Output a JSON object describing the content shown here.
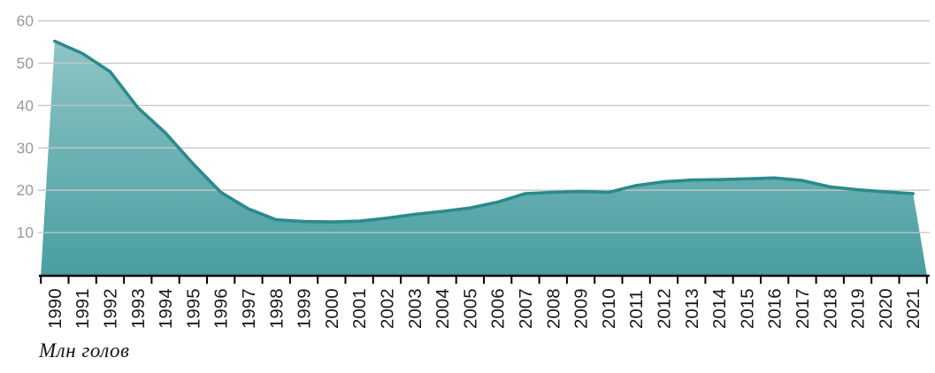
{
  "chart_data": {
    "type": "area",
    "title": "",
    "xlabel": "",
    "ylabel": "",
    "unit_caption": "Млн голов",
    "legend": "none",
    "grid": "horizontal",
    "ylim": [
      0,
      60
    ],
    "yticks": [
      "10",
      "20",
      "30",
      "40",
      "50",
      "60"
    ],
    "categories": [
      "1990",
      "1991",
      "1992",
      "1993",
      "1994",
      "1995",
      "1996",
      "1997",
      "1998",
      "1999",
      "2000",
      "2001",
      "2002",
      "2003",
      "2004",
      "2005",
      "2006",
      "2007",
      "2008",
      "2009",
      "2010",
      "2011",
      "2012",
      "2013",
      "2014",
      "2015",
      "2016",
      "2017",
      "2018",
      "2019",
      "2020",
      "2021"
    ],
    "values": [
      55.2,
      52.3,
      48.0,
      39.5,
      33.5,
      26.2,
      19.5,
      15.6,
      13.0,
      12.6,
      12.5,
      12.7,
      13.4,
      14.3,
      15.0,
      15.8,
      17.2,
      19.2,
      19.5,
      19.7,
      19.5,
      21.1,
      22.0,
      22.4,
      22.5,
      22.7,
      22.9,
      22.3,
      20.8,
      20.1,
      19.6,
      19.2
    ],
    "colors": {
      "line": "#2b8a8c",
      "fill_top": "#95c8c9",
      "fill_bottom": "#489ea0",
      "gridline": "#c6c6c6",
      "axis": "#000000",
      "y_tick_labels": "#9a9a9a",
      "x_tick_labels": "#1a1a1a"
    }
  }
}
